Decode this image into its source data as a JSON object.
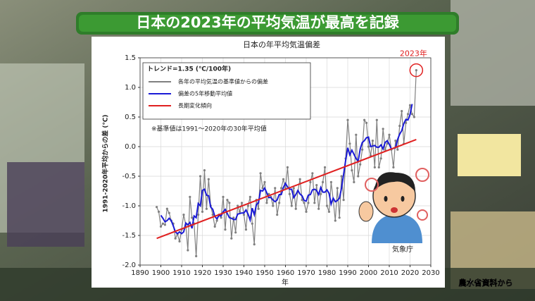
{
  "banner": "日本の2023年の平均気温が最高を記録",
  "source": "農水省資料から",
  "chart_data": {
    "type": "line",
    "title": "日本の年平均気温偏差",
    "x_label": "年",
    "y_label": "1991-2020年平均からの差 (℃)",
    "trend_label": "トレンド=1.35 (℃/100年)",
    "note": "※基準値は1991～2020年の30年平均値",
    "highlight_label": "2023年",
    "credit": "気象庁",
    "xlim": [
      1890,
      2030
    ],
    "xticks": [
      1890,
      1900,
      1910,
      1920,
      1930,
      1940,
      1950,
      1960,
      1970,
      1980,
      1990,
      2000,
      2010,
      2020,
      2030
    ],
    "ylim": [
      -2.0,
      1.5
    ],
    "yticks": [
      {
        "value": -2.0,
        "label": "-2.0"
      },
      -1.5,
      {
        "value": -1.0,
        "label": "-1.0"
      },
      -0.5,
      {
        "value": 0,
        "label": "0.0"
      },
      0.5,
      {
        "value": 1.0,
        "label": "1.0"
      },
      1.5
    ],
    "grid": true,
    "x": [
      1898,
      1899,
      1900,
      1901,
      1902,
      1903,
      1904,
      1905,
      1906,
      1907,
      1908,
      1909,
      1910,
      1911,
      1912,
      1913,
      1914,
      1915,
      1916,
      1917,
      1918,
      1919,
      1920,
      1921,
      1922,
      1923,
      1924,
      1925,
      1926,
      1927,
      1928,
      1929,
      1930,
      1931,
      1932,
      1933,
      1934,
      1935,
      1936,
      1937,
      1938,
      1939,
      1940,
      1941,
      1942,
      1943,
      1944,
      1945,
      1946,
      1947,
      1948,
      1949,
      1950,
      1951,
      1952,
      1953,
      1954,
      1955,
      1956,
      1957,
      1958,
      1959,
      1960,
      1961,
      1962,
      1963,
      1964,
      1965,
      1966,
      1967,
      1968,
      1969,
      1970,
      1971,
      1972,
      1973,
      1974,
      1975,
      1976,
      1977,
      1978,
      1979,
      1980,
      1981,
      1982,
      1983,
      1984,
      1985,
      1986,
      1987,
      1988,
      1989,
      1990,
      1991,
      1992,
      1993,
      1994,
      1995,
      1996,
      1997,
      1998,
      1999,
      2000,
      2001,
      2002,
      2003,
      2004,
      2005,
      2006,
      2007,
      2008,
      2009,
      2010,
      2011,
      2012,
      2013,
      2014,
      2015,
      2016,
      2017,
      2018,
      2019,
      2020,
      2021,
      2022,
      2023
    ],
    "series": [
      {
        "name": "各年の平均気温の基準値からの偏差",
        "color": "#808080",
        "markers": true,
        "values": [
          -1.02,
          -1.1,
          -1.35,
          -1.3,
          -1.32,
          -1.05,
          -1.12,
          -1.25,
          -1.3,
          -1.55,
          -1.48,
          -1.6,
          -1.4,
          -1.15,
          -1.32,
          -1.75,
          -0.85,
          -1.2,
          -1.3,
          -1.85,
          -1.15,
          -0.5,
          -1.1,
          -0.4,
          -1.05,
          -0.55,
          -1.0,
          -1.15,
          -1.35,
          -1.25,
          -1.15,
          -1.2,
          -0.85,
          -1.4,
          -0.9,
          -0.95,
          -1.55,
          -1.2,
          -1.45,
          -1.0,
          -1.1,
          -0.95,
          -1.15,
          -1.4,
          -1.0,
          -0.85,
          -1.3,
          -1.65,
          -0.9,
          -1.05,
          -0.45,
          -0.7,
          -0.6,
          -0.95,
          -0.8,
          -0.85,
          -1.0,
          -0.7,
          -1.15,
          -0.95,
          -0.7,
          -0.55,
          -0.7,
          -0.35,
          -0.8,
          -1.0,
          -0.7,
          -1.05,
          -0.75,
          -0.55,
          -0.9,
          -0.95,
          -1.1,
          -0.95,
          -0.6,
          -0.45,
          -0.95,
          -0.65,
          -1.05,
          -0.8,
          -0.6,
          -0.35,
          -1.0,
          -1.1,
          -0.6,
          -0.9,
          -1.25,
          -0.7,
          -1.2,
          -0.5,
          -0.9,
          -0.2,
          0.45,
          0.05,
          -0.4,
          -0.6,
          0.2,
          -0.5,
          -0.3,
          -0.05,
          0.45,
          0.4,
          0.0,
          -0.15,
          0.1,
          -0.35,
          0.45,
          -0.35,
          -0.2,
          0.3,
          -0.05,
          0.05,
          0.2,
          -0.05,
          -0.35,
          0.1,
          -0.05,
          0.35,
          0.6,
          0.05,
          0.4,
          0.55,
          0.7,
          0.55,
          0.5,
          1.29
        ]
      },
      {
        "name": "偏差の5年移動平均値",
        "color": "#1a1ad6",
        "markers": false,
        "values": [
          null,
          null,
          -1.16,
          -1.21,
          -1.27,
          -1.25,
          -1.21,
          -1.25,
          -1.34,
          -1.44,
          -1.47,
          -1.44,
          -1.47,
          -1.44,
          -1.29,
          -1.32,
          -1.28,
          -1.38,
          -1.17,
          -1.2,
          -0.96,
          -1.0,
          -0.74,
          -0.72,
          -0.82,
          -0.83,
          -1.02,
          -1.06,
          -1.18,
          -1.22,
          -1.16,
          -1.17,
          -1.1,
          -1.06,
          -1.13,
          -1.2,
          -1.21,
          -1.23,
          -1.23,
          -1.14,
          -1.13,
          -1.12,
          -1.12,
          -1.07,
          -1.14,
          -1.24,
          -1.04,
          -1.15,
          -0.98,
          -0.95,
          -0.74,
          -0.75,
          -0.7,
          -0.78,
          -0.86,
          -0.86,
          -0.9,
          -0.93,
          -0.9,
          -0.81,
          -0.81,
          -0.69,
          -0.62,
          -0.68,
          -0.72,
          -0.72,
          -0.86,
          -0.81,
          -0.74,
          -0.8,
          -0.83,
          -0.91,
          -0.92,
          -0.82,
          -0.81,
          -0.73,
          -0.72,
          -0.74,
          -0.81,
          -0.69,
          -0.77,
          -0.77,
          -0.73,
          -0.79,
          -0.97,
          -0.87,
          -0.93,
          -0.91,
          -0.87,
          -0.7,
          -0.47,
          -0.23,
          -0.02,
          -0.14,
          -0.06,
          -0.13,
          -0.2,
          -0.25,
          -0.04,
          0.07,
          0.1,
          0.15,
          0.16,
          0.0,
          0.01,
          0.02,
          -0.01,
          -0.01,
          0.03,
          -0.04,
          0.07,
          0.1,
          0.04,
          -0.04,
          -0.03,
          -0.02,
          0.12,
          0.21,
          0.27,
          0.39,
          0.46,
          0.45,
          0.54,
          0.72,
          null,
          null
        ]
      },
      {
        "name": "長期変化傾向",
        "color": "#e02020",
        "markers": false,
        "x": [
          1898,
          2023
        ],
        "values": [
          -1.55,
          0.12
        ]
      }
    ],
    "legend": "upper left"
  }
}
